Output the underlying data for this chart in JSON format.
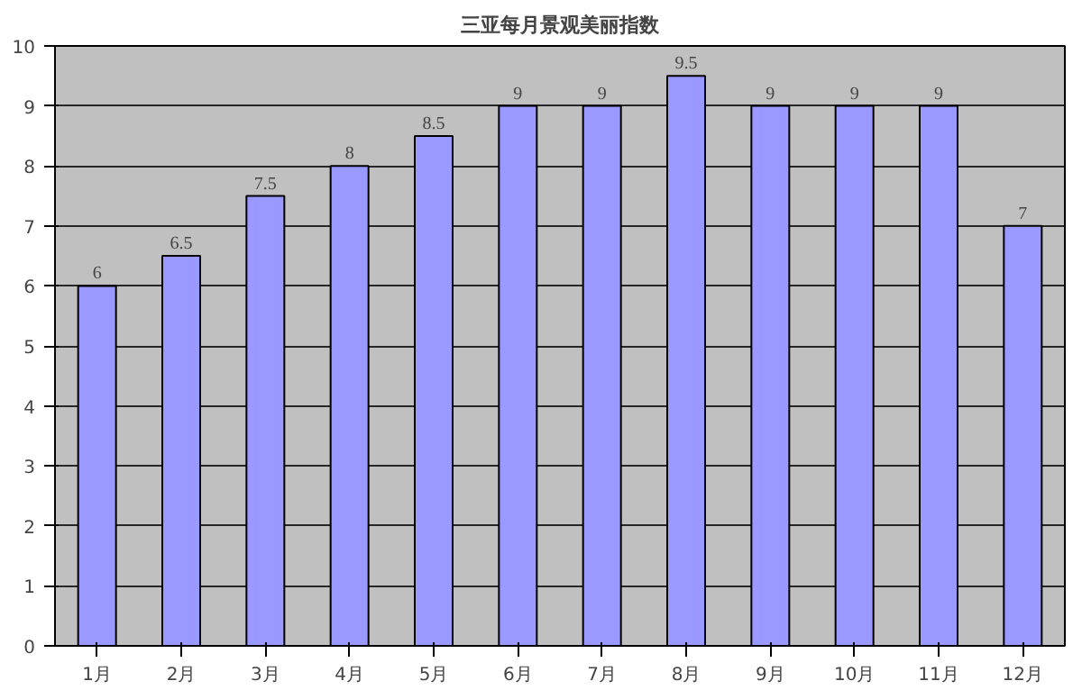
{
  "chart_data": {
    "type": "bar",
    "title": "三亚每月景观美丽指数",
    "categories": [
      "1月",
      "2月",
      "3月",
      "4月",
      "5月",
      "6月",
      "7月",
      "8月",
      "9月",
      "10月",
      "11月",
      "12月"
    ],
    "values": [
      6,
      6.5,
      7.5,
      8,
      8.5,
      9,
      9,
      9.5,
      9,
      9,
      9,
      7
    ],
    "value_labels": [
      "6",
      "6.5",
      "7.5",
      "8",
      "8.5",
      "9",
      "9",
      "9.5",
      "9",
      "9",
      "9",
      "7"
    ],
    "color": "#9999ff",
    "ylim": [
      0,
      10
    ],
    "yticks": [
      0,
      1,
      2,
      3,
      4,
      5,
      6,
      7,
      8,
      9,
      10
    ],
    "grid": "y"
  }
}
